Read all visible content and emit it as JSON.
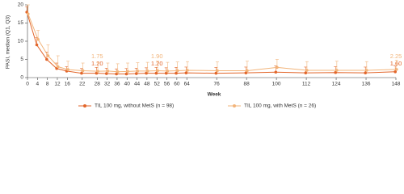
{
  "chart_data": {
    "type": "line",
    "y_label": "PASI, median (Q1, Q3)",
    "x_label": "Week",
    "x": [
      0,
      4,
      8,
      12,
      16,
      22,
      28,
      32,
      36,
      40,
      44,
      48,
      52,
      56,
      60,
      64,
      76,
      88,
      100,
      112,
      124,
      136,
      148
    ],
    "xlim": [
      0,
      148
    ],
    "xticks": [
      0,
      4,
      8,
      12,
      16,
      22,
      28,
      32,
      36,
      40,
      44,
      48,
      52,
      56,
      60,
      64,
      76,
      88,
      100,
      112,
      124,
      136,
      148
    ],
    "ylim": [
      0,
      20
    ],
    "yticks": [
      0,
      5,
      10,
      15,
      20
    ],
    "series": [
      {
        "name": "TIL 100 mg, without MetS (n = 98)",
        "color": "#e2662b",
        "values": [
          18,
          9,
          5,
          2.5,
          1.8,
          1.2,
          1.2,
          1.1,
          1.0,
          1.0,
          1.1,
          1.2,
          1.2,
          1.2,
          1.2,
          1.3,
          1.2,
          1.3,
          1.5,
          1.3,
          1.4,
          1.3,
          1.6
        ],
        "q3": [
          19.5,
          11,
          7,
          4,
          3,
          2.5,
          2.8,
          2.6,
          2.4,
          2.5,
          2.6,
          2.7,
          2.8,
          2.7,
          2.8,
          2.9,
          2.8,
          2.9,
          3.2,
          2.9,
          3.0,
          2.9,
          3.2
        ],
        "value_labels": [
          null,
          null,
          null,
          null,
          null,
          null,
          "1.20",
          null,
          null,
          null,
          null,
          null,
          "1.20",
          null,
          null,
          null,
          null,
          null,
          null,
          null,
          null,
          null,
          "1.60"
        ]
      },
      {
        "name": "TIL 100 mg, with MetS (n = 26)",
        "color": "#f2b47a",
        "values": [
          17.5,
          10.5,
          6,
          3,
          2.2,
          1.9,
          1.75,
          1.8,
          1.6,
          1.7,
          1.8,
          1.8,
          1.9,
          1.8,
          1.9,
          2.0,
          1.9,
          1.9,
          2.8,
          2.0,
          2.0,
          2.0,
          2.25
        ],
        "q3": [
          20,
          13,
          9,
          6,
          4.5,
          4,
          4.2,
          4.0,
          3.8,
          4.0,
          4.1,
          4.2,
          4.5,
          4.2,
          4.3,
          4.4,
          4.3,
          4.5,
          5.0,
          4.4,
          4.5,
          4.4,
          4.8
        ],
        "value_labels": [
          null,
          null,
          null,
          null,
          null,
          null,
          "1.75",
          null,
          null,
          null,
          null,
          null,
          "1.90",
          null,
          null,
          null,
          null,
          null,
          null,
          null,
          null,
          null,
          "2.25"
        ]
      }
    ]
  }
}
